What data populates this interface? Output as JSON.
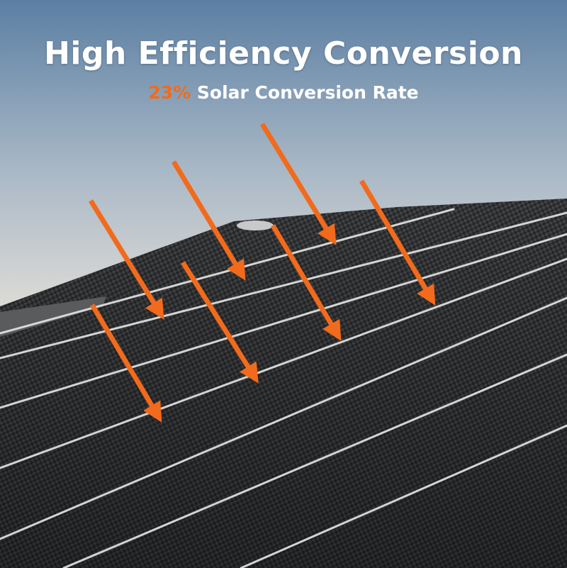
{
  "headline": "High Efficiency Conversion",
  "subheadline": {
    "highlight": "23%",
    "text": " Solar Conversion Rate"
  },
  "colors": {
    "accent": "#f26a1b",
    "sky_top": "#5b7fa3",
    "sky_bottom": "#f3ece2",
    "panel": "#2e2f31"
  },
  "image": {
    "subject": "solar-panel-surface",
    "arrow_count": 7
  }
}
